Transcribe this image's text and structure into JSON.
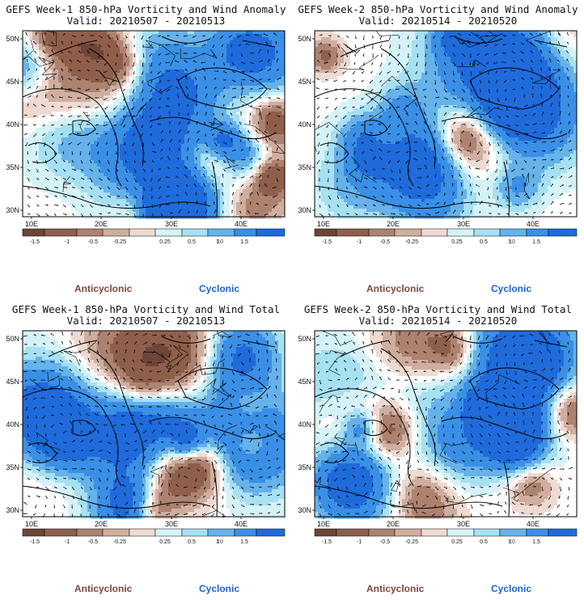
{
  "panels": [
    {
      "title": "GEFS Week-1 850-hPa Vorticity and Wind Anomaly",
      "valid": "Valid: 20210507 - 20210513"
    },
    {
      "title": "GEFS Week-2 850-hPa Vorticity and Wind Anomaly",
      "valid": "Valid: 20210514 - 20210520"
    },
    {
      "title": "GEFS Week-1 850-hPa Vorticity and Wind Total",
      "valid": "Valid: 20210507 - 20210513"
    },
    {
      "title": "GEFS Week-2 850-hPa Vorticity and Wind Total",
      "valid": "Valid: 20210514 - 20210520"
    }
  ],
  "lat_labels": [
    "50N",
    "45N",
    "40N",
    "35N",
    "30N"
  ],
  "lon_labels": [
    "10E",
    "20E",
    "30E",
    "40E"
  ],
  "colorbar": {
    "labels": [
      "-1.5",
      "-1",
      "-0.5",
      "-0.25",
      "0.25",
      "0.5",
      "1",
      "1.5"
    ],
    "vector_ref": "10",
    "colors": [
      "#6e4538",
      "#8f5f4c",
      "#ad8270",
      "#cfae9f",
      "#eedad1",
      "#ffffff",
      "#d5f2f8",
      "#a6e0f3",
      "#66b2ea",
      "#3a8fe6",
      "#1f6bdb"
    ]
  },
  "legend": {
    "anticyclonic": "Anticyclonic",
    "cyclonic": "Cyclonic"
  },
  "colors": {
    "anticyclonic": "#7b4a3a",
    "cyclonic": "#1f63d6"
  }
}
